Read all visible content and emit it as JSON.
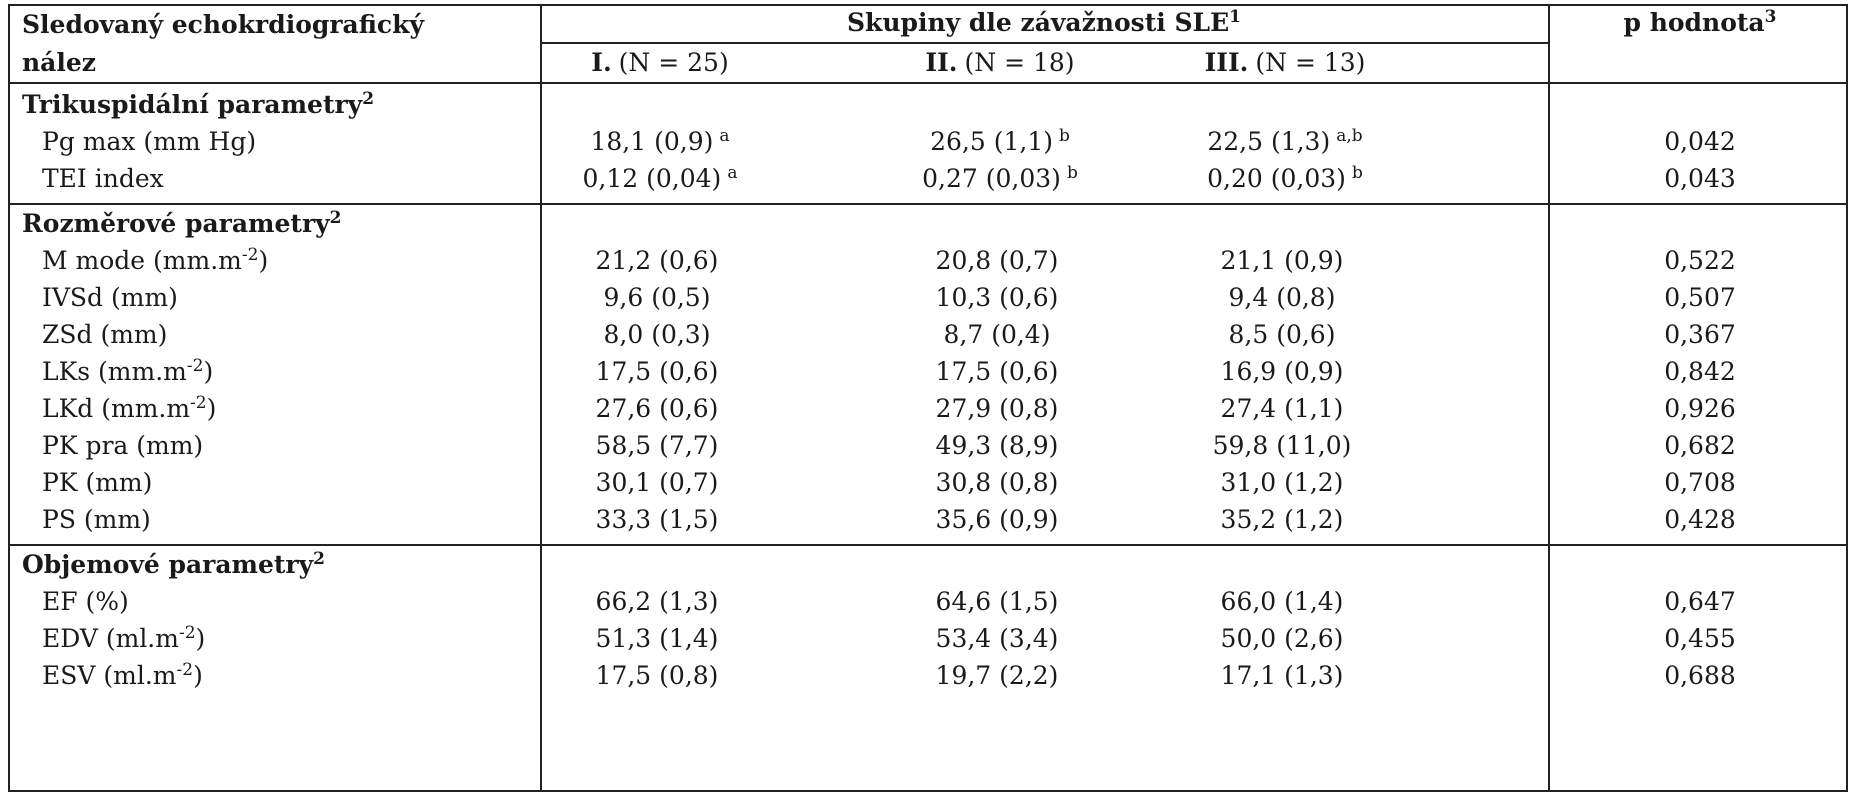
{
  "header": {
    "col_label_line1": "Sledovaný echokrdiografický",
    "col_label_line2": "nález",
    "groups_title": "Skupiny dle závažnosti SLE",
    "groups_title_sup": "1",
    "p_title": "p hodnota",
    "p_title_sup": "3",
    "group1_roman": "I.",
    "group1_n": "(N = 25)",
    "group2_roman": "II.",
    "group2_n": "(N = 18)",
    "group3_roman": "III.",
    "group3_n": "(N = 13)"
  },
  "sections": [
    {
      "title": "Trikuspidální parametry",
      "sup": "2",
      "rows": [
        {
          "label": "Pg max (mm Hg)",
          "label_sup": "",
          "label_suffix": "",
          "g1": "18,1 (0,9)",
          "g1_sup": "a",
          "g2": "26,5 (1,1)",
          "g2_sup": "b",
          "g3": "22,5 (1,3)",
          "g3_sup": "a,b",
          "p": "0,042"
        },
        {
          "label": "TEI index",
          "label_sup": "",
          "label_suffix": "",
          "g1": "0,12 (0,04)",
          "g1_sup": "a",
          "g2": "0,27 (0,03)",
          "g2_sup": "b",
          "g3": "0,20 (0,03)",
          "g3_sup": "b",
          "p": "0,043"
        }
      ]
    },
    {
      "title": "Rozměrové parametry",
      "sup": "2",
      "rows": [
        {
          "label": "M mode (mm.m",
          "label_sup": "-2",
          "label_suffix": ")",
          "g1": "21,2 (0,6)",
          "g1_sup": "",
          "g2": "20,8 (0,7)",
          "g2_sup": "",
          "g3": "21,1 (0,9)",
          "g3_sup": "",
          "p": "0,522"
        },
        {
          "label": "IVSd (mm)",
          "label_sup": "",
          "label_suffix": "",
          "g1": "9,6 (0,5)",
          "g1_sup": "",
          "g2": "10,3 (0,6)",
          "g2_sup": "",
          "g3": "9,4 (0,8)",
          "g3_sup": "",
          "p": "0,507"
        },
        {
          "label": "ZSd (mm)",
          "label_sup": "",
          "label_suffix": "",
          "g1": "8,0 (0,3)",
          "g1_sup": "",
          "g2": "8,7 (0,4)",
          "g2_sup": "",
          "g3": "8,5 (0,6)",
          "g3_sup": "",
          "p": "0,367"
        },
        {
          "label": "LKs (mm.m",
          "label_sup": "-2",
          "label_suffix": ")",
          "g1": "17,5 (0,6)",
          "g1_sup": "",
          "g2": "17,5 (0,6)",
          "g2_sup": "",
          "g3": "16,9 (0,9)",
          "g3_sup": "",
          "p": "0,842"
        },
        {
          "label": "LKd (mm.m",
          "label_sup": "-2",
          "label_suffix": ")",
          "g1": "27,6 (0,6)",
          "g1_sup": "",
          "g2": "27,9 (0,8)",
          "g2_sup": "",
          "g3": "27,4 (1,1)",
          "g3_sup": "",
          "p": "0,926"
        },
        {
          "label": "PK pra (mm)",
          "label_sup": "",
          "label_suffix": "",
          "g1": "58,5 (7,7)",
          "g1_sup": "",
          "g2": "49,3 (8,9)",
          "g2_sup": "",
          "g3": "59,8 (11,0)",
          "g3_sup": "",
          "p": "0,682"
        },
        {
          "label": "PK (mm)",
          "label_sup": "",
          "label_suffix": "",
          "g1": "30,1 (0,7)",
          "g1_sup": "",
          "g2": "30,8 (0,8)",
          "g2_sup": "",
          "g3": "31,0 (1,2)",
          "g3_sup": "",
          "p": "0,708"
        },
        {
          "label": "PS (mm)",
          "label_sup": "",
          "label_suffix": "",
          "g1": "33,3 (1,5)",
          "g1_sup": "",
          "g2": "35,6 (0,9)",
          "g2_sup": "",
          "g3": "35,2 (1,2)",
          "g3_sup": "",
          "p": "0,428"
        }
      ]
    },
    {
      "title": "Objemové parametry",
      "sup": "2",
      "rows": [
        {
          "label": "EF (%)",
          "label_sup": "",
          "label_suffix": "",
          "g1": "66,2 (1,3)",
          "g1_sup": "",
          "g2": "64,6 (1,5)",
          "g2_sup": "",
          "g3": "66,0 (1,4)",
          "g3_sup": "",
          "p": "0,647"
        },
        {
          "label": "EDV (ml.m",
          "label_sup": "-2",
          "label_suffix": ")",
          "g1": "51,3 (1,4)",
          "g1_sup": "",
          "g2": "53,4 (3,4)",
          "g2_sup": "",
          "g3": "50,0 (2,6)",
          "g3_sup": "",
          "p": "0,455"
        },
        {
          "label": "ESV (ml.m",
          "label_sup": "-2",
          "label_suffix": ")",
          "g1": "17,5 (0,8)",
          "g1_sup": "",
          "g2": "19,7 (2,2)",
          "g2_sup": "",
          "g3": "17,1 (1,3)",
          "g3_sup": "",
          "p": "0,688"
        }
      ]
    }
  ]
}
